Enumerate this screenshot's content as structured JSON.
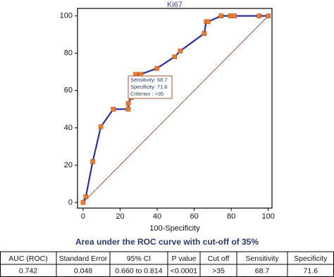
{
  "chart_data": {
    "type": "line",
    "title": "Ki67",
    "x_label": "100-Specificity",
    "x": [
      0,
      1.5,
      5.2,
      9.6,
      16.3,
      24.4,
      24.4,
      25.9,
      27.4,
      28.4,
      31.1,
      39.9,
      49.4,
      52.5,
      65.4,
      66.5,
      67.5,
      74.5,
      79.6,
      81.7,
      95,
      100
    ],
    "series": [
      {
        "color": "#2e2f9a",
        "marker_color": "#f07a30",
        "values": [
          0,
          3.1,
          21.9,
          40.6,
          50,
          50,
          53.1,
          56.2,
          62.5,
          68.7,
          68.7,
          71.9,
          78.1,
          81.2,
          90.6,
          96.9,
          96.9,
          100,
          100,
          100,
          100,
          100
        ]
      }
    ],
    "xlim": [
      -3,
      102
    ],
    "ylim": [
      -3,
      104
    ],
    "xticks": [
      0,
      20,
      40,
      60,
      80,
      100
    ],
    "yticks": [
      0,
      20,
      40,
      60,
      80,
      100
    ],
    "reference_color": "#a0503a",
    "annotation": [
      "Sensitivity: 68.7",
      "Specificity: 71.6",
      "Criterion : >35"
    ]
  },
  "caption": "Area under the ROC curve with cut-off of 35%",
  "table": {
    "columns": [
      "AUC (ROC)",
      "Standard Error",
      "95% CI",
      "P value",
      "Cut off",
      "Sensitivity",
      "Specificity"
    ],
    "rows": [
      [
        0.742,
        0.048,
        "0.660 to 0.814",
        "<0.0001",
        ">35",
        68.7,
        71.6
      ]
    ]
  }
}
